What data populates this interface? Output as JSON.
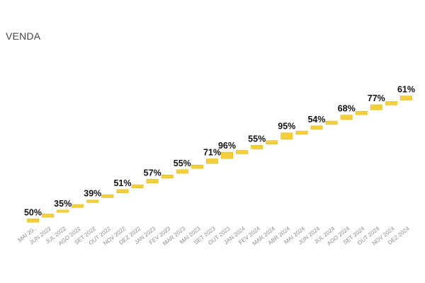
{
  "chart_data": {
    "type": "bar",
    "title": "VENDA",
    "xlabel": "",
    "ylabel": "",
    "categories": [
      "MAI 20..",
      "JUN 2022",
      "JUL 2022",
      "AGO 2022",
      "SET 2022",
      "OUT 2022",
      "NOV 2022",
      "DEZ 2022",
      "JAN 2023",
      "FEV 2023",
      "MAR 2023",
      "MAI 2023",
      "SET 2023",
      "OUT 2023",
      "JAN 2024",
      "FEV 2024",
      "MAR 2024",
      "ABR 2024",
      "MAI 2024",
      "JUN 2024",
      "JUL 2024",
      "AGO 2024",
      "SET 2024",
      "OUT 2024",
      "NOV 2024",
      "DEZ 2024"
    ],
    "values": [
      50,
      48,
      35,
      45,
      39,
      45,
      51,
      47,
      57,
      48,
      55,
      52,
      71,
      96,
      52,
      55,
      52,
      95,
      50,
      54,
      52,
      68,
      50,
      77,
      52,
      61
    ],
    "data_labels": [
      "50%",
      "",
      "35%",
      "",
      "39%",
      "",
      "51%",
      "",
      "57%",
      "",
      "55%",
      "",
      "71%",
      "96%",
      "",
      "55%",
      "",
      "95%",
      "",
      "54%",
      "",
      "68%",
      "",
      "77%",
      "",
      "61%"
    ],
    "grid": false,
    "legend": "none",
    "bar_color": "#F2CF3C"
  }
}
